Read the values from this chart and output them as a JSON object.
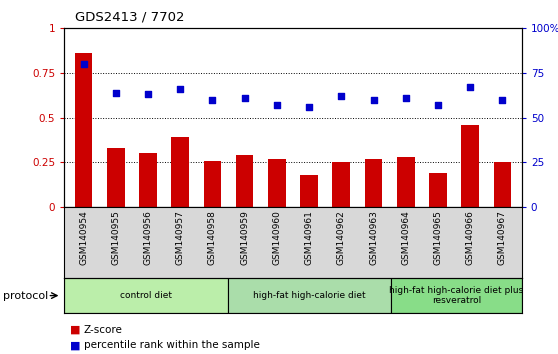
{
  "title": "GDS2413 / 7702",
  "samples": [
    "GSM140954",
    "GSM140955",
    "GSM140956",
    "GSM140957",
    "GSM140958",
    "GSM140959",
    "GSM140960",
    "GSM140961",
    "GSM140962",
    "GSM140963",
    "GSM140964",
    "GSM140965",
    "GSM140966",
    "GSM140967"
  ],
  "zscore": [
    0.86,
    0.33,
    0.3,
    0.39,
    0.26,
    0.29,
    0.27,
    0.18,
    0.25,
    0.27,
    0.28,
    0.19,
    0.46,
    0.25
  ],
  "percentile": [
    0.8,
    0.64,
    0.63,
    0.66,
    0.6,
    0.61,
    0.57,
    0.56,
    0.62,
    0.6,
    0.61,
    0.57,
    0.67,
    0.6
  ],
  "bar_color": "#cc0000",
  "dot_color": "#0000cc",
  "ylim_left": [
    0,
    1.0
  ],
  "ylim_right": [
    0,
    100
  ],
  "yticks_left": [
    0,
    0.25,
    0.5,
    0.75,
    1.0
  ],
  "ytick_labels_left": [
    "0",
    "0.25",
    "0.5",
    "0.75",
    "1"
  ],
  "yticks_right": [
    0,
    25,
    50,
    75,
    100
  ],
  "ytick_labels_right": [
    "0",
    "25",
    "50",
    "75",
    "100%"
  ],
  "groups": [
    {
      "label": "control diet",
      "start": 0,
      "end": 4,
      "color": "#bbeeaa"
    },
    {
      "label": "high-fat high-calorie diet",
      "start": 5,
      "end": 9,
      "color": "#aaddaa"
    },
    {
      "label": "high-fat high-calorie diet plus\nresveratrol",
      "start": 10,
      "end": 13,
      "color": "#88dd88"
    }
  ],
  "legend_zscore_label": "Z-score",
  "legend_percentile_label": "percentile rank within the sample",
  "protocol_label": "protocol",
  "gray_bg": "#d8d8d8",
  "plot_bg": "#ffffff"
}
